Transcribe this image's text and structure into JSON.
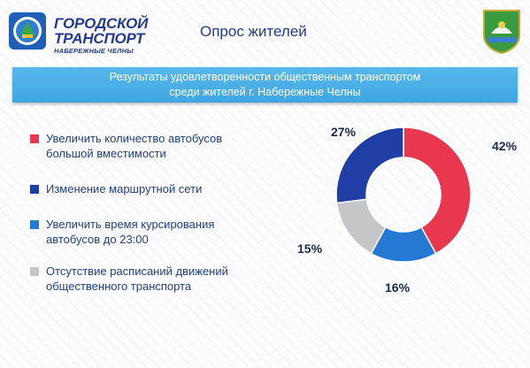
{
  "header": {
    "logo_line1": "ГОРОДСКОЙ",
    "logo_line2": "ТРАНСПОРТ",
    "logo_line3": "НАБЕРЕЖНЫЕ ЧЕЛНЫ",
    "title": "Опрос жителей"
  },
  "banner": {
    "line1": "Результаты удовлетворенности общественным транспортом",
    "line2": "среди жителей г. Набережные Челны"
  },
  "legend": [
    {
      "line1": "Увеличить количество автобусов",
      "line2": "большой вместимости",
      "color": "#e8374f"
    },
    {
      "line1": "Изменение маршрутной сети",
      "line2": "",
      "color": "#1f3fa6"
    },
    {
      "line1": "Увеличить время курсирования",
      "line2": "автобусов до 23:00",
      "color": "#2479d2"
    },
    {
      "line1": "Отсутствие расписаний движений",
      "line2": "общественного транспорта",
      "color": "#c4c6c9"
    }
  ],
  "chart_data": {
    "type": "pie",
    "donut": true,
    "categories": [
      "Увеличить количество автобусов большой вместимости",
      "Увеличить время курсирования автобусов до 23:00",
      "Отсутствие расписаний движений общественного транспорта",
      "Изменение маршрутной сети"
    ],
    "values": [
      42,
      16,
      15,
      27
    ],
    "labels": [
      "42%",
      "16%",
      "15%",
      "27%"
    ],
    "colors": [
      "#e8374f",
      "#2479d2",
      "#c4c6c9",
      "#1f3fa6"
    ],
    "title": "Результаты удовлетворенности общественным транспортом среди жителей г. Набережные Челны"
  }
}
